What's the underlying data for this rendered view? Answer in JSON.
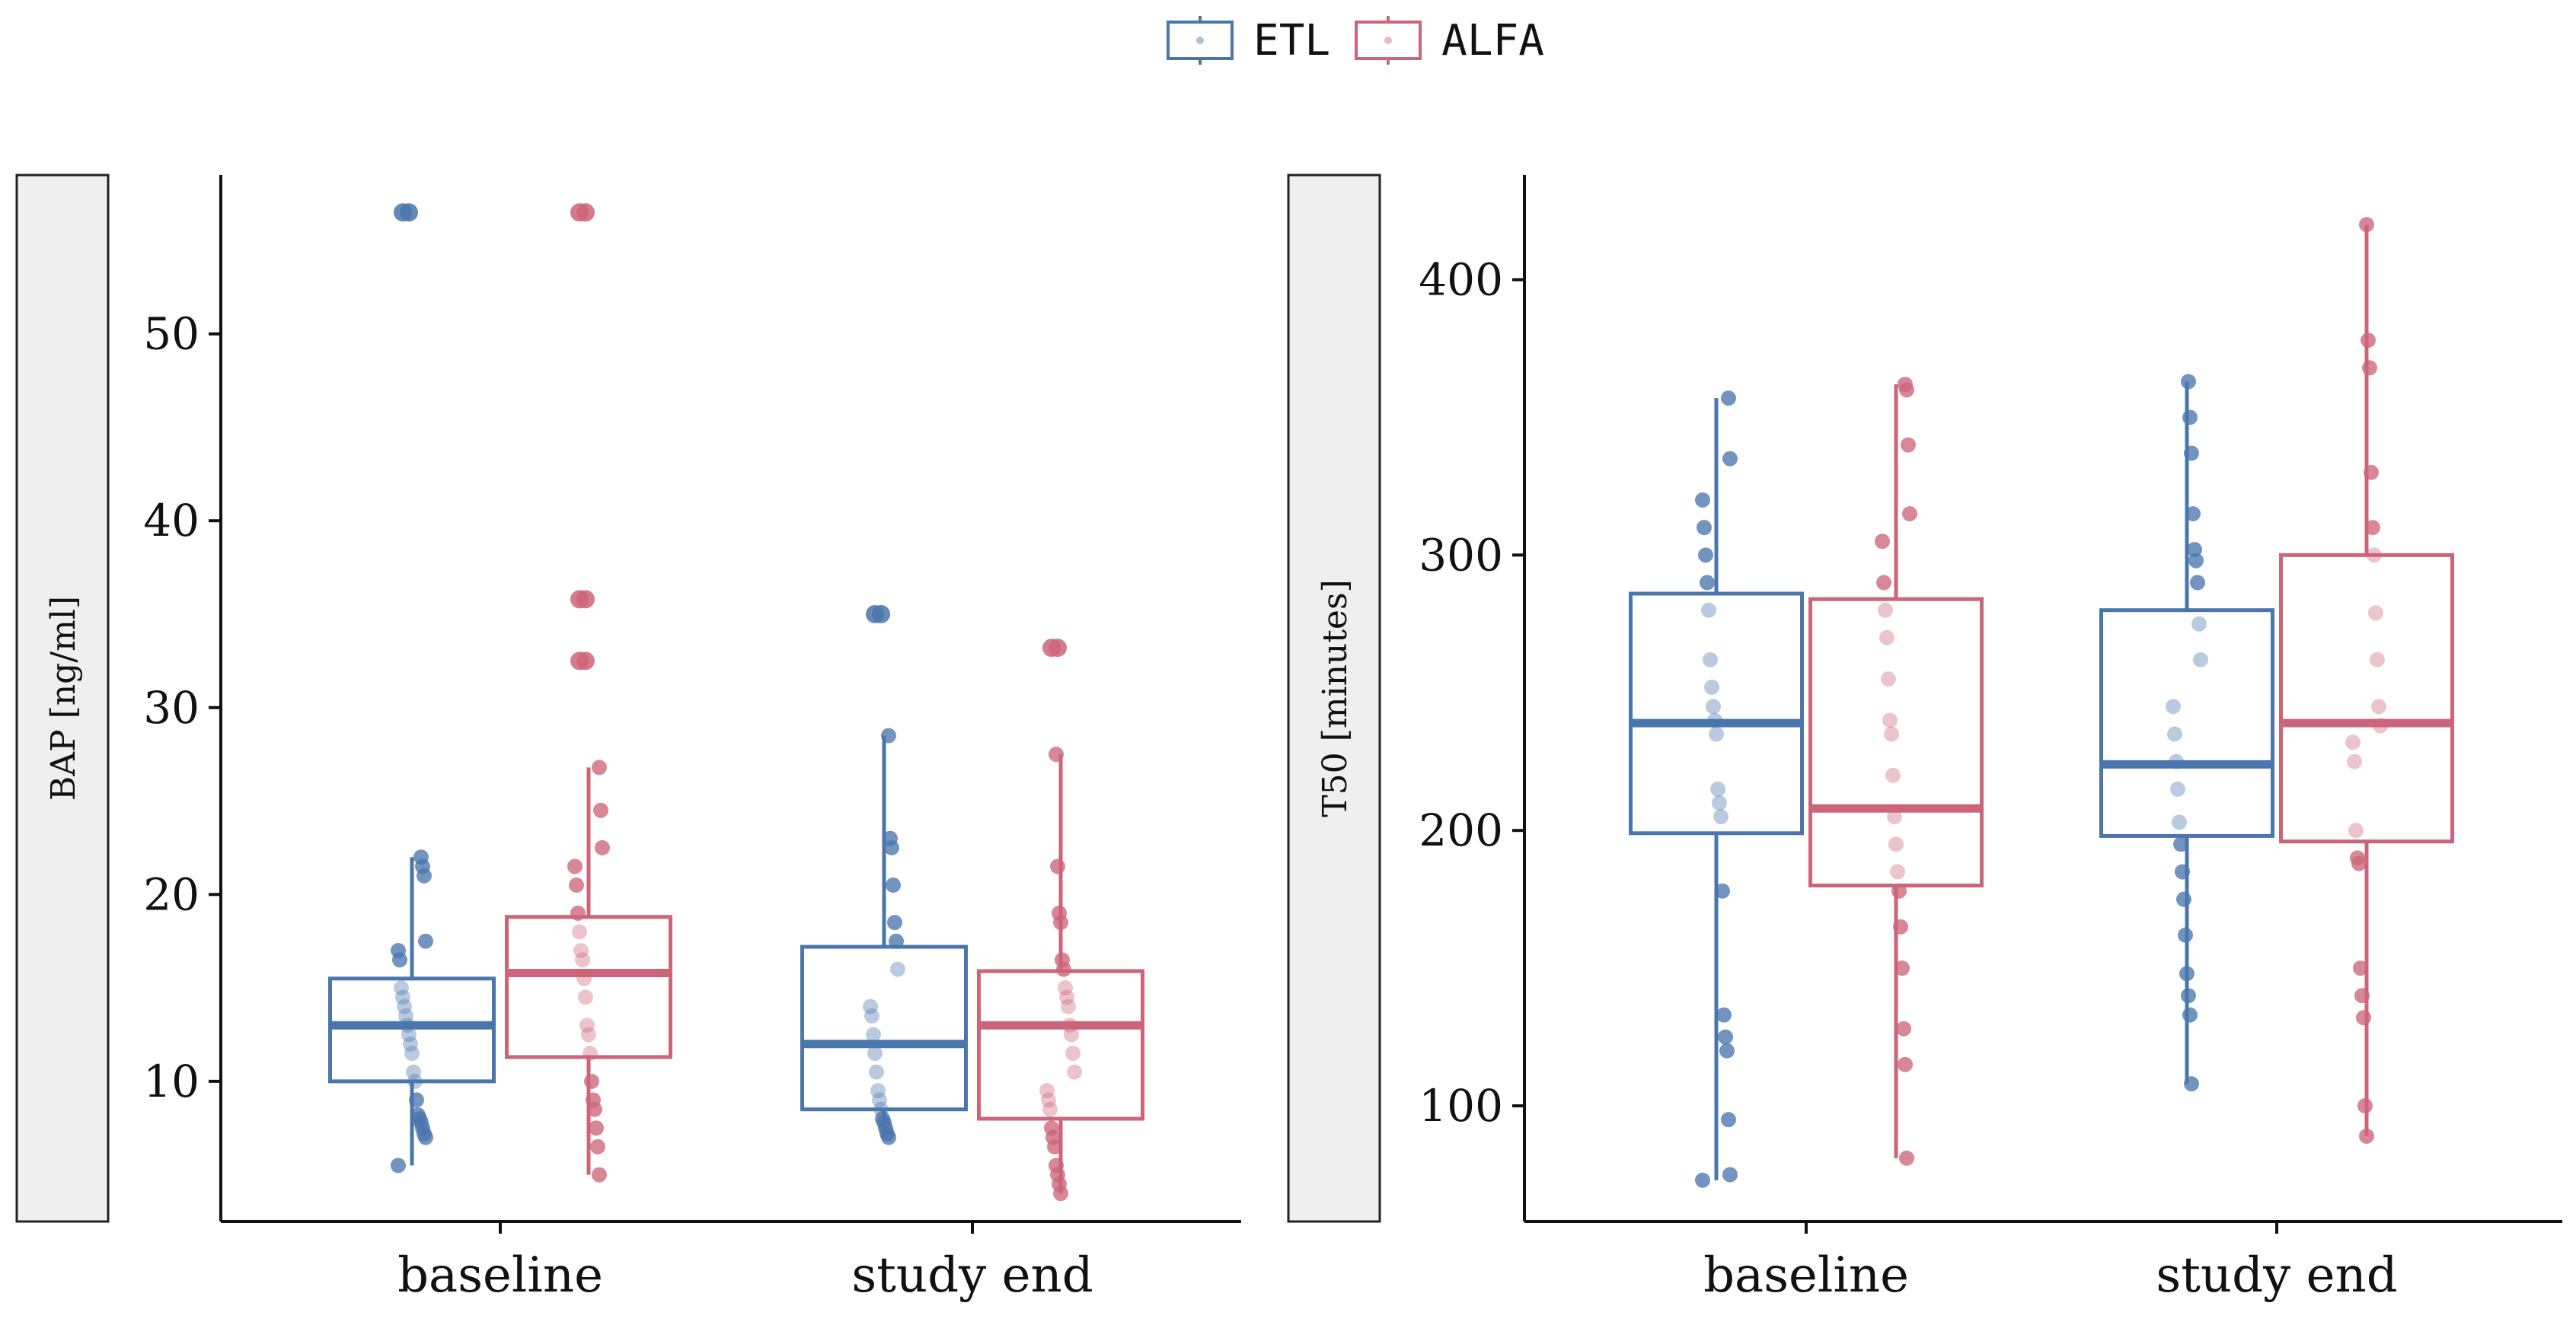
{
  "legend": {
    "items": [
      {
        "key": "ETL",
        "label": "ETL",
        "color": "#4a76ad"
      },
      {
        "key": "ALFA",
        "label": "ALFA",
        "color": "#cc6579"
      }
    ]
  },
  "chart_data": [
    {
      "type": "box",
      "title": "",
      "xlabel": "",
      "ylabel": "BAP [ng/ml]",
      "ylim": [
        2.5,
        58.5
      ],
      "yticks": [
        10,
        20,
        30,
        40,
        50
      ],
      "categories": [
        "baseline",
        "study end"
      ],
      "series": [
        {
          "name": "ETL",
          "boxes": [
            {
              "q1": 10.0,
              "median": 13.0,
              "q3": 15.5,
              "whisker_low": 5.5,
              "whisker_high": 22.0,
              "outliers": [
                56.5
              ],
              "points": [
                5.5,
                7.0,
                7.2,
                7.5,
                7.8,
                8.0,
                8.2,
                9.0,
                10.0,
                10.5,
                11.5,
                12.0,
                12.5,
                13.0,
                13.5,
                14.0,
                14.5,
                15.0,
                16.5,
                17.0,
                17.5,
                21.0,
                21.5,
                22.0
              ]
            },
            {
              "q1": 8.5,
              "median": 12.0,
              "q3": 17.2,
              "whisker_low": 7.0,
              "whisker_high": 28.5,
              "outliers": [
                35.0
              ],
              "points": [
                7.0,
                7.2,
                7.5,
                7.8,
                8.0,
                8.5,
                9.0,
                9.5,
                10.5,
                11.5,
                12.5,
                13.5,
                14.0,
                16.0,
                17.5,
                18.5,
                20.5,
                22.5,
                23.0,
                28.5
              ]
            }
          ]
        },
        {
          "name": "ALFA",
          "boxes": [
            {
              "q1": 11.3,
              "median": 15.8,
              "q3": 18.8,
              "whisker_low": 5.0,
              "whisker_high": 26.8,
              "outliers": [
                32.5,
                35.8,
                56.5
              ],
              "points": [
                5.0,
                6.5,
                7.5,
                8.5,
                9.0,
                10.0,
                11.5,
                12.5,
                13.0,
                14.5,
                15.5,
                16.5,
                17.0,
                18.0,
                19.0,
                20.5,
                21.5,
                22.5,
                24.5,
                26.8
              ]
            },
            {
              "q1": 8.0,
              "median": 13.0,
              "q3": 15.9,
              "whisker_low": 4.0,
              "whisker_high": 27.5,
              "outliers": [
                33.2
              ],
              "points": [
                4.0,
                4.5,
                5.0,
                5.5,
                6.5,
                7.0,
                7.5,
                8.5,
                9.0,
                9.5,
                10.5,
                11.5,
                12.5,
                13.0,
                14.0,
                14.5,
                15.0,
                16.0,
                16.5,
                18.5,
                19.0,
                21.5,
                27.5
              ]
            }
          ]
        }
      ]
    },
    {
      "type": "box",
      "title": "",
      "xlabel": "",
      "ylabel": "T50 [minutes]",
      "ylim": [
        58,
        438
      ],
      "yticks": [
        100,
        200,
        300,
        400
      ],
      "categories": [
        "baseline",
        "study end"
      ],
      "series": [
        {
          "name": "ETL",
          "boxes": [
            {
              "q1": 199,
              "median": 239,
              "q3": 286,
              "whisker_low": 73,
              "whisker_high": 357,
              "outliers": [],
              "points": [
                73,
                75,
                95,
                120,
                125,
                133,
                178,
                205,
                210,
                215,
                235,
                240,
                245,
                252,
                262,
                280,
                290,
                300,
                310,
                320,
                335,
                357
              ]
            },
            {
              "q1": 198,
              "median": 224,
              "q3": 280,
              "whisker_low": 108,
              "whisker_high": 363,
              "outliers": [],
              "points": [
                108,
                133,
                140,
                148,
                162,
                175,
                185,
                195,
                203,
                215,
                225,
                235,
                245,
                262,
                275,
                290,
                298,
                302,
                315,
                337,
                350,
                363
              ]
            }
          ]
        },
        {
          "name": "ALFA",
          "boxes": [
            {
              "q1": 180,
              "median": 208,
              "q3": 284,
              "whisker_low": 81,
              "whisker_high": 362,
              "outliers": [],
              "points": [
                81,
                115,
                128,
                150,
                165,
                178,
                185,
                195,
                205,
                220,
                235,
                240,
                255,
                270,
                280,
                290,
                305,
                315,
                340,
                360,
                362
              ]
            },
            {
              "q1": 196,
              "median": 239,
              "q3": 300,
              "whisker_low": 89,
              "whisker_high": 420,
              "outliers": [],
              "points": [
                89,
                100,
                132,
                140,
                150,
                188,
                190,
                200,
                225,
                232,
                238,
                245,
                262,
                279,
                300,
                310,
                330,
                368,
                378,
                420
              ]
            }
          ]
        }
      ]
    }
  ]
}
